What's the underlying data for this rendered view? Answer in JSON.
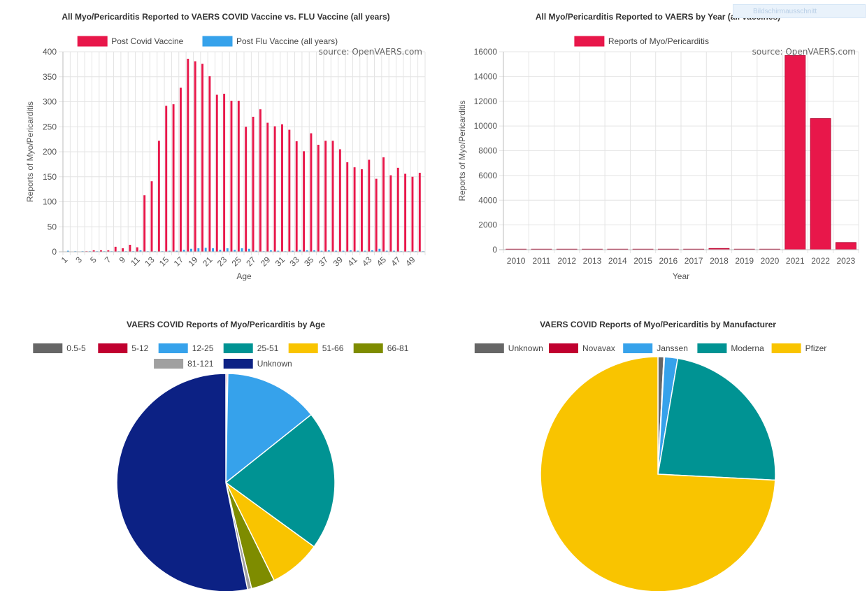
{
  "overlay": {
    "label": "Bildschirmausschnitt"
  },
  "chart_data": [
    {
      "id": "age",
      "type": "bar",
      "title": "All Myo/Pericarditis Reported to VAERS COVID Vaccine vs. FLU Vaccine (all years)",
      "source": "source: OpenVAERS.com",
      "xlabel": "Age",
      "ylabel": "Reports of Myo/Pericarditis",
      "ylim": [
        0,
        400
      ],
      "yticks": [
        0,
        50,
        100,
        150,
        200,
        250,
        300,
        350,
        400
      ],
      "categories": [
        1,
        2,
        3,
        4,
        5,
        6,
        7,
        8,
        9,
        10,
        11,
        12,
        13,
        14,
        15,
        16,
        17,
        18,
        19,
        20,
        21,
        22,
        23,
        24,
        25,
        26,
        27,
        28,
        29,
        30,
        31,
        32,
        33,
        34,
        35,
        36,
        37,
        38,
        39,
        40,
        41,
        42,
        43,
        44,
        45,
        46,
        47,
        48,
        49,
        50
      ],
      "xtick_labels": [
        "1",
        "3",
        "5",
        "7",
        "9",
        "11",
        "13",
        "15",
        "17",
        "19",
        "21",
        "23",
        "25",
        "27",
        "29",
        "31",
        "33",
        "35",
        "37",
        "39",
        "41",
        "43",
        "45",
        "47",
        "49"
      ],
      "series": [
        {
          "name": "Post Covid Vaccine",
          "color": "#e8174a",
          "values": [
            0,
            0,
            0,
            1,
            3,
            3,
            3,
            10,
            7,
            14,
            9,
            113,
            141,
            222,
            292,
            295,
            328,
            386,
            381,
            376,
            351,
            314,
            316,
            302,
            302,
            250,
            270,
            285,
            258,
            251,
            255,
            244,
            221,
            201,
            237,
            214,
            222,
            222,
            205,
            179,
            169,
            165,
            184,
            146,
            189,
            153,
            168,
            156,
            150,
            158
          ]
        },
        {
          "name": "Post Flu Vaccine (all years)",
          "color": "#36a2eb",
          "values": [
            2,
            1,
            1,
            1,
            1,
            1,
            1,
            1,
            1,
            1,
            3,
            1,
            1,
            1,
            2,
            2,
            4,
            6,
            7,
            8,
            7,
            4,
            7,
            4,
            7,
            6,
            2,
            1,
            3,
            2,
            1,
            2,
            4,
            3,
            3,
            2,
            3,
            2,
            2,
            3,
            2,
            2,
            3,
            6,
            2,
            2,
            1,
            1,
            1,
            1
          ]
        }
      ]
    },
    {
      "id": "year",
      "type": "bar",
      "title": "All Myo/Pericarditis Reported to VAERS by Year (all vaccines)",
      "source": "source: OpenVAERS.com",
      "xlabel": "Year",
      "ylabel": "Reports of Myo/Pericarditis",
      "ylim": [
        0,
        16000
      ],
      "yticks": [
        0,
        2000,
        4000,
        6000,
        8000,
        10000,
        12000,
        14000,
        16000
      ],
      "categories": [
        "2010",
        "2011",
        "2012",
        "2013",
        "2014",
        "2015",
        "2016",
        "2017",
        "2018",
        "2019",
        "2020",
        "2021",
        "2022",
        "2023"
      ],
      "series": [
        {
          "name": "Reports of Myo/Pericarditis",
          "color": "#e8174a",
          "values": [
            30,
            40,
            40,
            30,
            30,
            30,
            30,
            40,
            100,
            40,
            40,
            15700,
            10600,
            580
          ]
        }
      ]
    },
    {
      "id": "agegroup",
      "type": "pie",
      "title": "VAERS COVID Reports of Myo/Pericarditis by Age",
      "slices": [
        {
          "label": "0.5-5",
          "value": 0.1,
          "color": "#666666"
        },
        {
          "label": "5-12",
          "value": 0.2,
          "color": "#c0002f"
        },
        {
          "label": "12-25",
          "value": 14.0,
          "color": "#36a2eb"
        },
        {
          "label": "25-51",
          "value": 20.7,
          "color": "#009393"
        },
        {
          "label": "51-66",
          "value": 7.7,
          "color": "#f9c400"
        },
        {
          "label": "66-81",
          "value": 3.5,
          "color": "#7e8c00"
        },
        {
          "label": "81-121",
          "value": 0.6,
          "color": "#a0a0a0"
        },
        {
          "label": "Unknown",
          "value": 53.2,
          "color": "#0c2184"
        }
      ]
    },
    {
      "id": "manufacturer",
      "type": "pie",
      "title": "VAERS COVID Reports of Myo/Pericarditis by Manufacturer",
      "slices": [
        {
          "label": "Unknown",
          "value": 0.8,
          "color": "#666666"
        },
        {
          "label": "Novavax",
          "value": 0.1,
          "color": "#c0002f"
        },
        {
          "label": "Janssen",
          "value": 1.8,
          "color": "#36a2eb"
        },
        {
          "label": "Moderna",
          "value": 23.1,
          "color": "#009393"
        },
        {
          "label": "Pfizer",
          "value": 74.2,
          "color": "#f9c400"
        }
      ]
    }
  ]
}
